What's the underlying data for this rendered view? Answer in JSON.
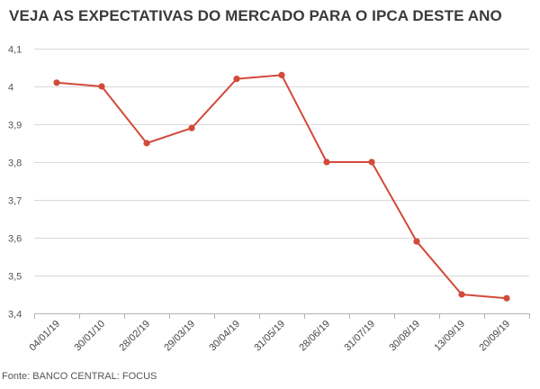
{
  "chart_data": {
    "type": "line",
    "title": "VEJA AS EXPECTATIVAS DO MERCADO PARA O IPCA DESTE ANO",
    "xlabel": "",
    "ylabel": "",
    "categories": [
      "04/01/19",
      "30/01/10",
      "28/02/19",
      "29/03/19",
      "30/04/19",
      "31/05/19",
      "28/06/19",
      "31/07/19",
      "30/08/19",
      "13/09/19",
      "20/09/19"
    ],
    "series": [
      {
        "values": [
          4.01,
          4.0,
          3.85,
          3.89,
          4.02,
          4.03,
          3.8,
          3.8,
          3.59,
          3.45,
          3.44
        ]
      }
    ],
    "ylim": [
      3.4,
      4.1
    ],
    "yticks": [
      "3,4",
      "3,5",
      "3,6",
      "3,7",
      "3,8",
      "3,9",
      "4",
      "4,1"
    ],
    "grid": "horizontal",
    "legend": "none",
    "colors": {
      "line": "#d24a3a",
      "grid": "#d9d9d9",
      "axis": "#b3b3b3"
    },
    "source": "Fonte: BANCO CENTRAL: FOCUS"
  }
}
